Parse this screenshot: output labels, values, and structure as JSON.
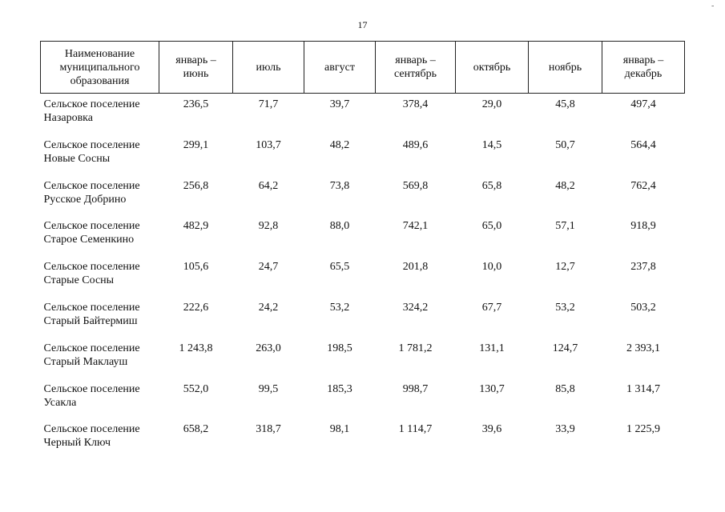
{
  "page": {
    "number": "17",
    "corner_mark": "-"
  },
  "table": {
    "headers": [
      "Наименование\nмуниципального\nобразования",
      "январь –\nиюнь",
      "июль",
      "август",
      "январь –\nсентябрь",
      "октябрь",
      "ноябрь",
      "январь –\nдекабрь"
    ],
    "rows": [
      [
        "Сельское поселение\nНазаровка",
        "236,5",
        "71,7",
        "39,7",
        "378,4",
        "29,0",
        "45,8",
        "497,4"
      ],
      [
        "Сельское поселение\nНовые Сосны",
        "299,1",
        "103,7",
        "48,2",
        "489,6",
        "14,5",
        "50,7",
        "564,4"
      ],
      [
        "Сельское поселение\nРусское Добрино",
        "256,8",
        "64,2",
        "73,8",
        "569,8",
        "65,8",
        "48,2",
        "762,4"
      ],
      [
        "Сельское поселение\nСтарое Семенкино",
        "482,9",
        "92,8",
        "88,0",
        "742,1",
        "65,0",
        "57,1",
        "918,9"
      ],
      [
        "Сельское поселение\nСтарые Сосны",
        "105,6",
        "24,7",
        "65,5",
        "201,8",
        "10,0",
        "12,7",
        "237,8"
      ],
      [
        "Сельское поселение\nСтарый Байтермиш",
        "222,6",
        "24,2",
        "53,2",
        "324,2",
        "67,7",
        "53,2",
        "503,2"
      ],
      [
        "Сельское поселение\nСтарый Маклауш",
        "1 243,8",
        "263,0",
        "198,5",
        "1 781,2",
        "131,1",
        "124,7",
        "2 393,1"
      ],
      [
        "Сельское поселение\nУсакла",
        "552,0",
        "99,5",
        "185,3",
        "998,7",
        "130,7",
        "85,8",
        "1 314,7"
      ],
      [
        "Сельское поселение\nЧерный Ключ",
        "658,2",
        "318,7",
        "98,1",
        "1 114,7",
        "39,6",
        "33,9",
        "1 225,9"
      ]
    ]
  }
}
